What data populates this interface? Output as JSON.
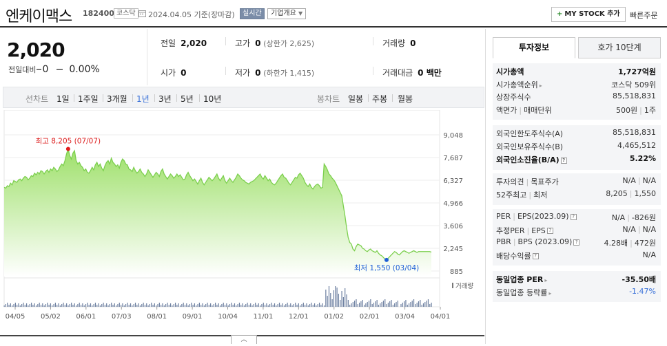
{
  "header": {
    "name": "엔케이맥스",
    "code": "182400",
    "market": "코스닥",
    "date": "2024.04.05  기준(장마감)",
    "realtime": "실시간",
    "corp_info": "기업개요",
    "mystock": "MY STOCK 추가",
    "quick_order": "빠른주문"
  },
  "price": {
    "current": "2,020",
    "diff_label": "전일대비",
    "diff_value": "0",
    "diff_rate": "0.00%"
  },
  "quotes": {
    "prev_label": "전일",
    "prev": "2,020",
    "high_label": "고가",
    "high": "0",
    "upper_limit": "(상한가 2,625)",
    "volume_label": "거래량",
    "volume": "0",
    "open_label": "시가",
    "open": "0",
    "low_label": "저가",
    "low": "0",
    "lower_limit": "(하한가 1,415)",
    "amount_label": "거래대금",
    "amount": "0 백만"
  },
  "periods": {
    "line_chart": "선차트",
    "items": [
      "1일",
      "1주일",
      "3개월",
      "1년",
      "3년",
      "5년",
      "10년"
    ],
    "active": "1년",
    "candle_chart": "봉차트",
    "candle_items": [
      "일봉",
      "주봉",
      "월봉"
    ]
  },
  "chart_data": {
    "type": "area",
    "y_ticks": [
      "9,048",
      "7,687",
      "6,327",
      "4,966",
      "3,606",
      "2,245",
      "885"
    ],
    "y_range": [
      885,
      9048
    ],
    "x_ticks": [
      "04/05",
      "05/02",
      "06/01",
      "07/03",
      "08/01",
      "09/01",
      "10/04",
      "11/01",
      "12/01",
      "01/02",
      "02/01",
      "03/04",
      "04/01"
    ],
    "high_label": "최고 8,205 (07/07)",
    "low_label": "최저 1,550 (03/04)",
    "volume_label": "거래량",
    "color": "#7ccf4e",
    "values": [
      5900,
      5850,
      6000,
      5950,
      6150,
      6050,
      6300,
      6250,
      6200,
      6350,
      6400,
      6300,
      6450,
      6550,
      6500,
      6350,
      6450,
      6600,
      6550,
      6750,
      6650,
      6800,
      6700,
      6900,
      6850,
      6700,
      6850,
      6950,
      6800,
      7000,
      6900,
      7100,
      7000,
      6850,
      6950,
      7150,
      7300,
      7200,
      7500,
      7900,
      8205,
      7800,
      7600,
      7950,
      8100,
      7500,
      7300,
      7400,
      7200,
      7100,
      6900,
      7000,
      6800,
      6750,
      6900,
      7100,
      6950,
      7250,
      7400,
      7150,
      7300,
      7050,
      6900,
      7200,
      7400,
      7500,
      7300,
      7650,
      7400,
      7300,
      7150,
      7250,
      7050,
      7400,
      7600,
      7500,
      7300,
      7250,
      7000,
      6950,
      6850,
      7100,
      6900,
      6750,
      6850,
      7000,
      6800,
      6700,
      6550,
      6700,
      6950,
      6800,
      6650,
      6500,
      6650,
      6800,
      6700,
      6550,
      6850,
      7000,
      6700,
      6550,
      6400,
      6550,
      6700,
      6600,
      6450,
      6550,
      6700,
      6550,
      6650,
      6500,
      6350,
      6400,
      6650,
      6800,
      6600,
      6450,
      6300,
      6400,
      6250,
      6100,
      6300,
      6450,
      6200,
      6050,
      6200,
      6350,
      6500,
      6400,
      6300,
      6400,
      6550,
      6700,
      6450,
      6300,
      6450,
      6600,
      6300,
      6150,
      6300,
      6450,
      6300,
      6200,
      6350,
      6500,
      6700,
      6600,
      6450,
      6350,
      6300,
      6200,
      6150,
      6100,
      6200,
      6250,
      6300,
      6400,
      6500,
      6600,
      6700,
      6500,
      6400,
      6600,
      6450,
      6300,
      6400,
      6200,
      6100,
      6050,
      6150,
      6300,
      6450,
      6600,
      6700,
      6500,
      6450,
      6300,
      6150,
      6050,
      6200,
      6350,
      6500,
      6450,
      6650,
      6750,
      6600,
      6450,
      6200,
      6050,
      5950,
      6100,
      5900,
      5800,
      5950,
      6050,
      6100,
      6000,
      5850,
      5900,
      7300,
      7150,
      6950,
      6700,
      6600,
      6450,
      6350,
      6200,
      6000,
      5800,
      5600,
      5400,
      4800,
      4200,
      3500,
      2900,
      2600,
      2500,
      2200,
      2100,
      2350,
      2500,
      2450,
      2400,
      2250,
      2200,
      2100,
      2050,
      2150,
      2200,
      2100,
      2050,
      2000,
      2100,
      1950,
      1850,
      1800,
      1700,
      1600,
      1550,
      1650,
      1750,
      1850,
      1950,
      2050,
      2000,
      1900,
      1850,
      1950,
      2050,
      2100,
      2050,
      2000,
      1950,
      2000,
      2050,
      2100,
      2050,
      2000,
      2050,
      2050,
      2050,
      2050,
      2050,
      2050,
      2050,
      2050,
      2020
    ]
  },
  "side": {
    "tab_active": "투자정보",
    "tab_other": "호가 10단계",
    "block1": [
      {
        "l": "시가총액",
        "r": "1,727억원",
        "lbold": true,
        "rbold": true
      },
      {
        "l": "시가총액순위",
        "tri": true,
        "r": "코스닥 509위"
      },
      {
        "l": "상장주식수",
        "r": "85,518,831"
      },
      {
        "l": "액면가",
        "l2": "매매단위",
        "r": "500원",
        "r2": "1주"
      }
    ],
    "block2": [
      {
        "l": "외국인한도주식수(A)",
        "r": "85,518,831"
      },
      {
        "l": "외국인보유주식수(B)",
        "r": "4,465,512"
      },
      {
        "l": "외국인소진율(B/A)",
        "q": true,
        "r": "5.22%",
        "lbold": true,
        "rbold": true
      }
    ],
    "block3": [
      {
        "l": "투자의견",
        "l2": "목표주가",
        "r": "N/A",
        "r2": "N/A"
      },
      {
        "l": "52주최고",
        "l2": "최저",
        "r": "8,205",
        "r2": "1,550"
      }
    ],
    "block4": [
      {
        "l": "PER",
        "l2": "EPS(2023.09)",
        "q": true,
        "r": "N/A",
        "r2": "-826원"
      },
      {
        "l": "추정PER",
        "l2": "EPS",
        "q": true,
        "r": "N/A",
        "r2": "N/A"
      },
      {
        "l": "PBR",
        "l2": "BPS (2023.09)",
        "q": true,
        "r": "4.28배",
        "r2": "472원"
      },
      {
        "l": "배당수익률",
        "q": true,
        "r": "N/A"
      }
    ],
    "block5": [
      {
        "l": "동일업종 PER",
        "tri": true,
        "r": "-35.50배",
        "lbold": true,
        "rbold": true
      },
      {
        "l": "동일업종 등락률",
        "tri": true,
        "r": "-1.47%",
        "rblue": true
      }
    ]
  }
}
